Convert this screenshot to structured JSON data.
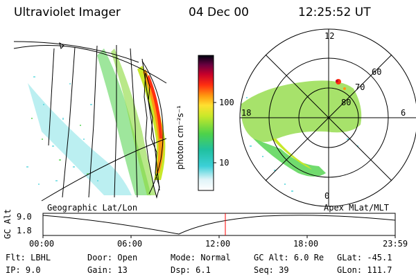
{
  "header": {
    "instrument": "Ultraviolet Imager",
    "date": "04 Dec 00",
    "time": "12:25:52 UT"
  },
  "colorbar": {
    "label": "photon cm⁻²s⁻¹",
    "ticks": [
      "100",
      "10"
    ]
  },
  "geo_panel": {
    "label": "Geographic Lat/Lon"
  },
  "polar_panel": {
    "label": "Apex MLat/MLT",
    "mlt_labels": [
      "12",
      "18",
      "6",
      "0"
    ],
    "lat_labels": [
      "60",
      "70",
      "80"
    ]
  },
  "orbit_plot": {
    "ylabel": "GC Alt",
    "ytick_top": "9.0",
    "ytick_bottom": "1.8",
    "xticks": [
      "00:00",
      "06:00",
      "12:00",
      "18:00",
      "23:59"
    ],
    "current_marker_time": "12:25",
    "marker_color": "#ff0000"
  },
  "status": {
    "row1": [
      {
        "key": "Flt:",
        "value": "LBHL"
      },
      {
        "key": "Door:",
        "value": "Open"
      },
      {
        "key": "Mode:",
        "value": "Normal"
      },
      {
        "key": "GC Alt:",
        "value": "6.0 Re"
      },
      {
        "key": "GLat:",
        "value": "-45.1"
      }
    ],
    "row2": [
      {
        "key": "IP:",
        "value": "9.0"
      },
      {
        "key": "Gain:",
        "value": "13"
      },
      {
        "key": "Dsp:",
        "value": "6.1"
      },
      {
        "key": "Seq:",
        "value": "39"
      },
      {
        "key": "GLon:",
        "value": "111.7"
      }
    ]
  }
}
